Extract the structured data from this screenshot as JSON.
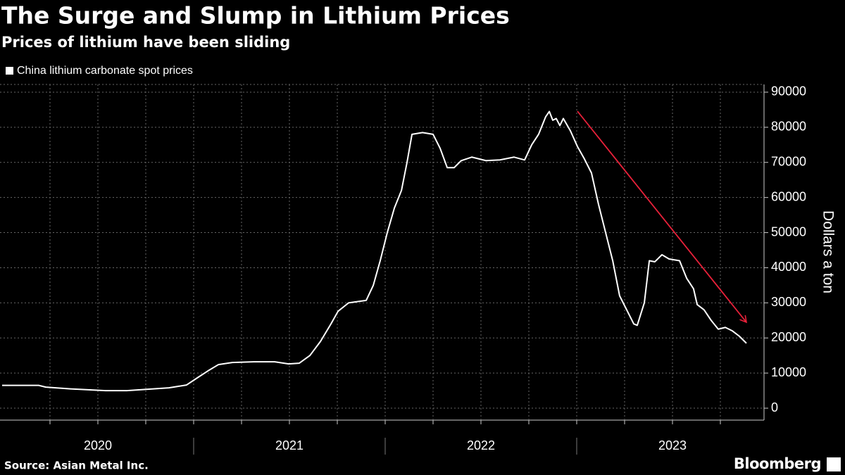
{
  "chart_data": {
    "type": "line",
    "title": "The Surge and Slump in Lithium Prices",
    "subtitle": "Prices of lithium have been sliding",
    "y_axis_label": "Dollars a ton",
    "source": "Source: Asian Metal Inc.",
    "branding": "Bloomberg",
    "grid": true,
    "legend": "top-left",
    "x": [
      2020.0,
      2020.191,
      2020.228,
      2020.357,
      2020.467,
      2020.54,
      2020.651,
      2020.761,
      2020.871,
      2020.963,
      2021.018,
      2021.074,
      2021.129,
      2021.202,
      2021.313,
      2021.423,
      2021.496,
      2021.551,
      2021.607,
      2021.662,
      2021.717,
      2021.754,
      2021.809,
      2021.901,
      2021.938,
      2021.974,
      2022.011,
      2022.048,
      2022.085,
      2022.114,
      2022.14,
      2022.195,
      2022.25,
      2022.287,
      2022.324,
      2022.36,
      2022.397,
      2022.452,
      2022.526,
      2022.599,
      2022.673,
      2022.728,
      2022.765,
      2022.801,
      2022.838,
      2022.857,
      2022.875,
      2022.893,
      2022.912,
      2022.93,
      2022.967,
      2023.004,
      2023.04,
      2023.077,
      2023.114,
      2023.151,
      2023.188,
      2023.224,
      2023.261,
      2023.298,
      2023.316,
      2023.353,
      2023.379,
      2023.408,
      2023.445,
      2023.482,
      2023.537,
      2023.574,
      2023.61,
      2023.629,
      2023.665,
      2023.702,
      2023.739,
      2023.776,
      2023.813,
      2023.849,
      2023.886
    ],
    "series": [
      {
        "name": "China lithium carbonate spot prices",
        "color": "#ffffff",
        "values": [
          6500,
          6500,
          6000,
          5500,
          5200,
          5000,
          5000,
          5400,
          5800,
          6600,
          8600,
          10600,
          12400,
          13000,
          13200,
          13200,
          12600,
          12800,
          15000,
          19000,
          24000,
          27600,
          30000,
          30700,
          35000,
          42000,
          50000,
          57000,
          62000,
          70000,
          78000,
          78500,
          78000,
          74000,
          68500,
          68500,
          70500,
          71500,
          70500,
          70700,
          71500,
          70700,
          75000,
          78000,
          83000,
          84500,
          82000,
          82500,
          80500,
          82500,
          79000,
          74500,
          71000,
          67000,
          58000,
          50000,
          42000,
          32000,
          28000,
          24000,
          23600,
          30000,
          42000,
          41700,
          43700,
          42500,
          42000,
          37000,
          34000,
          29500,
          28000,
          25000,
          22500,
          23000,
          22000,
          20500,
          18500
        ]
      }
    ],
    "xlim": [
      2020,
      2024
    ],
    "xticks": [
      {
        "value": 2020.5,
        "label": "2020"
      },
      {
        "value": 2021.5,
        "label": "2021"
      },
      {
        "value": 2022.5,
        "label": "2022"
      },
      {
        "value": 2023.5,
        "label": "2023"
      }
    ],
    "xminorticks": [
      2020.25,
      2020.5,
      2020.75,
      2021,
      2021.25,
      2021.5,
      2021.75,
      2022,
      2022.25,
      2022.5,
      2022.75,
      2023,
      2023.25,
      2023.5,
      2023.75
    ],
    "ylim": [
      -3400,
      92200
    ],
    "yticks": [
      0,
      10000,
      20000,
      30000,
      40000,
      50000,
      60000,
      70000,
      80000,
      90000
    ],
    "arrow_color": "#e8213a"
  }
}
